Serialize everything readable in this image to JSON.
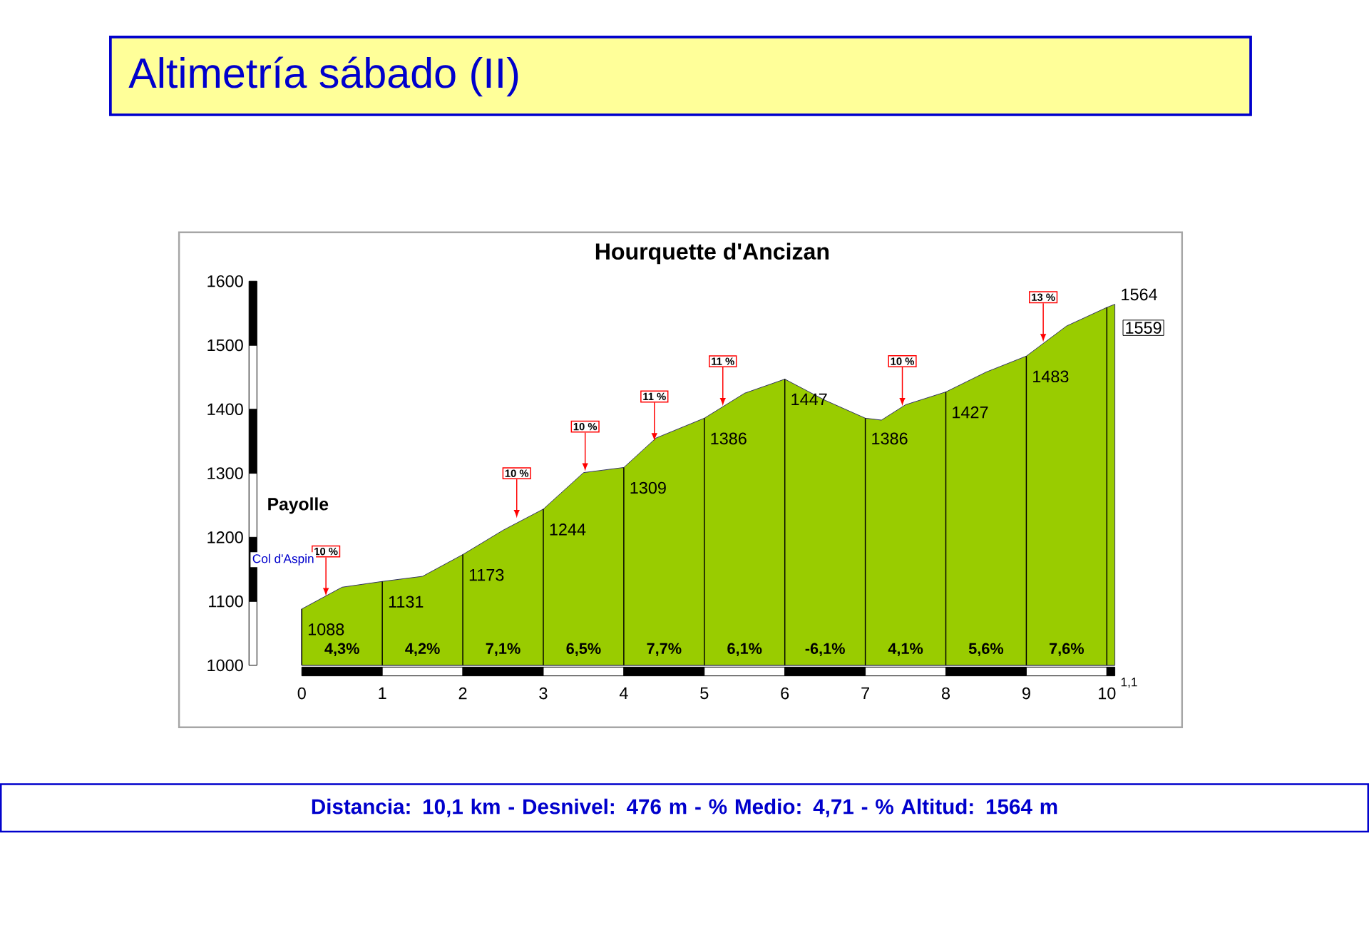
{
  "chart_data": {
    "type": "area",
    "title": "Altimetría sábado (II)",
    "subtitle": "Hourquette d'Ancizan",
    "x": [
      0,
      0.5,
      1,
      1.5,
      2,
      2.5,
      3,
      3.5,
      4,
      4.4,
      5,
      5.5,
      6,
      6.5,
      7,
      7.2,
      7.5,
      8,
      8.5,
      9,
      9.5,
      10,
      10.1
    ],
    "series": [
      {
        "color": "#99cc00",
        "values": [
          1088,
          1122,
          1131,
          1139,
          1173,
          1211,
          1244,
          1301,
          1309,
          1355,
          1386,
          1425,
          1447,
          1414,
          1386,
          1383,
          1407,
          1427,
          1458,
          1483,
          1530,
          1559,
          1564
        ],
        "value_labels": [
          "1088",
          null,
          "1131",
          null,
          "1173",
          null,
          "1244",
          null,
          "1309",
          null,
          "1386",
          null,
          "1447",
          null,
          "1386",
          null,
          null,
          "1427",
          null,
          "1483",
          null,
          "1559",
          "1564"
        ]
      }
    ],
    "xlim": [
      0,
      10.1
    ],
    "ylim": [
      1000,
      1600
    ],
    "xticks": [
      0,
      1,
      2,
      3,
      4,
      5,
      6,
      7,
      8,
      9,
      10
    ],
    "yticks": [
      1000,
      1100,
      1200,
      1300,
      1400,
      1500,
      1600
    ],
    "grid": "x",
    "annotations": [
      "4,3%",
      "4,2%",
      "7,1%",
      "6,5%",
      "7,7%",
      "6,1%",
      "-6,1%",
      "4,1%",
      "5,6%",
      "7,6%",
      {
        "text": "10 %",
        "x": 0.3,
        "y": 1108
      },
      {
        "text": "10 %",
        "x": 2.67,
        "y": 1230
      },
      {
        "text": "10 %",
        "x": 3.52,
        "y": 1303
      },
      {
        "text": "11 %",
        "x": 4.38,
        "y": 1350
      },
      {
        "text": "11 %",
        "x": 5.23,
        "y": 1405
      },
      {
        "text": "10 %",
        "x": 7.46,
        "y": 1405
      },
      {
        "text": "13 %",
        "x": 9.21,
        "y": 1505
      },
      {
        "text": "1,1",
        "x": 10.1,
        "y": 1000
      },
      "Payolle",
      "Col d'Aspin",
      "Distancia: 10,1 km -  Desnivel: 476 m -  % Medio: 4,71 -  % Altitud: 1564 m"
    ]
  }
}
